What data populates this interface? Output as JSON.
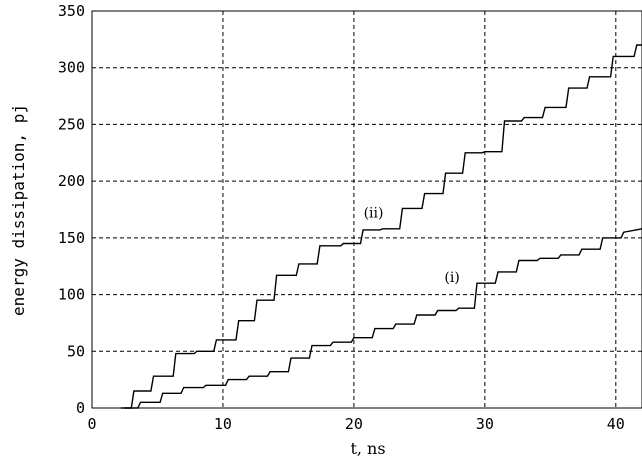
{
  "chart_data": {
    "type": "line",
    "title": "",
    "xlabel": "t, ns",
    "ylabel": "energy dissipation, pj",
    "xlim": [
      0,
      42
    ],
    "ylim": [
      0,
      350
    ],
    "xticks": [
      0,
      10,
      20,
      30,
      40
    ],
    "yticks": [
      0,
      50,
      100,
      150,
      200,
      250,
      300,
      350
    ],
    "grid": true,
    "legend": "none",
    "series": [
      {
        "label": "(ii)",
        "x": [
          2.2,
          3.0,
          3.2,
          4.5,
          4.7,
          6.2,
          6.4,
          7.8,
          8.0,
          9.3,
          9.5,
          11.0,
          11.2,
          12.4,
          12.6,
          13.9,
          14.1,
          15.6,
          15.8,
          17.2,
          17.4,
          19.0,
          19.2,
          20.5,
          20.7,
          22.0,
          22.2,
          23.5,
          23.7,
          25.2,
          25.4,
          26.8,
          27.0,
          28.3,
          28.5,
          29.8,
          30.0,
          31.3,
          31.5,
          32.8,
          33.0,
          34.4,
          34.6,
          36.2,
          36.4,
          37.8,
          38.0,
          39.6,
          39.8,
          41.4,
          41.6,
          42.0
        ],
        "y": [
          0,
          0,
          15,
          15,
          28,
          28,
          48,
          48,
          50,
          50,
          60,
          60,
          77,
          77,
          95,
          95,
          117,
          117,
          127,
          127,
          143,
          143,
          145,
          145,
          157,
          157,
          158,
          158,
          176,
          176,
          189,
          189,
          207,
          207,
          225,
          225,
          226,
          226,
          253,
          253,
          256,
          256,
          265,
          265,
          282,
          282,
          292,
          292,
          310,
          310,
          320,
          320
        ]
      },
      {
        "label": "(i)",
        "x": [
          2.5,
          3.5,
          3.7,
          5.2,
          5.4,
          6.8,
          7.0,
          8.5,
          8.7,
          10.2,
          10.4,
          11.8,
          12.0,
          13.4,
          13.6,
          15.0,
          15.2,
          16.6,
          16.8,
          18.2,
          18.4,
          19.8,
          20.0,
          21.4,
          21.6,
          23.0,
          23.2,
          24.6,
          24.8,
          26.2,
          26.4,
          27.8,
          28.0,
          29.2,
          29.4,
          30.8,
          31.0,
          32.4,
          32.6,
          34.0,
          34.2,
          35.6,
          35.8,
          37.2,
          37.4,
          38.8,
          39.0,
          40.4,
          40.6,
          42.0
        ],
        "y": [
          0,
          0,
          5,
          5,
          13,
          13,
          18,
          18,
          20,
          20,
          25,
          25,
          28,
          28,
          32,
          32,
          44,
          44,
          55,
          55,
          58,
          58,
          62,
          62,
          70,
          70,
          74,
          74,
          82,
          82,
          86,
          86,
          88,
          88,
          110,
          110,
          120,
          120,
          130,
          130,
          132,
          132,
          135,
          135,
          140,
          140,
          150,
          150,
          155,
          158
        ]
      }
    ],
    "annotations": [
      {
        "text": "(ii)",
        "x": 21.5,
        "y": 168
      },
      {
        "text": "(i)",
        "x": 27.5,
        "y": 111
      }
    ]
  }
}
